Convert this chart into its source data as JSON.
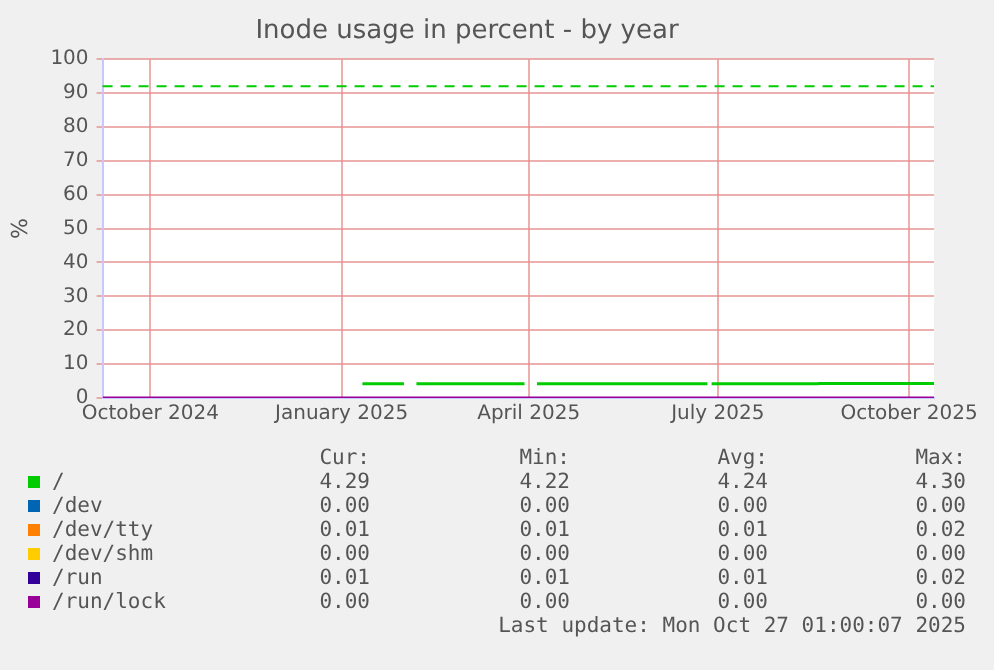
{
  "chart_data": {
    "type": "line",
    "title": "Inode usage in percent - by year",
    "ylabel": "%",
    "xlim": [
      "2024-09-22",
      "2025-10-27"
    ],
    "xticks": [
      {
        "value": "2024-10-15",
        "label": "October 2024"
      },
      {
        "value": "2025-01-15",
        "label": "January 2025"
      },
      {
        "value": "2025-04-15",
        "label": "April 2025"
      },
      {
        "value": "2025-07-15",
        "label": "July 2025"
      },
      {
        "value": "2025-10-15",
        "label": "October 2025"
      }
    ],
    "ylim": [
      0,
      100
    ],
    "yticks": [
      0,
      10,
      20,
      30,
      40,
      50,
      60,
      70,
      80,
      90,
      100
    ],
    "grid": true,
    "legend": "bottom",
    "ref_lines": [
      {
        "axis": "y",
        "value": 92,
        "color": "#00cc00",
        "line_style": "dashed"
      }
    ],
    "series": [
      {
        "name": "/",
        "color": "#00cc00",
        "x": [
          "2025-01-25",
          "2025-02-14",
          "2025-02-17",
          "2025-02-20",
          "2025-04-13",
          "2025-04-16",
          "2025-04-19",
          "2025-07-10",
          "2025-07-11",
          "2025-07-12",
          "2025-09-01",
          "2025-09-02",
          "2025-10-27"
        ],
        "values": [
          4.2,
          4.2,
          null,
          4.2,
          4.2,
          null,
          4.2,
          4.2,
          null,
          4.2,
          4.2,
          4.3,
          4.3
        ]
      },
      {
        "name": "/dev",
        "color": "#0066b3",
        "values": [
          null,
          null
        ]
      },
      {
        "name": "/dev/tty",
        "color": "#ff8000",
        "values": [
          null,
          null
        ]
      },
      {
        "name": "/dev/shm",
        "color": "#ffcc00",
        "values": [
          null,
          null
        ]
      },
      {
        "name": "/run",
        "color": "#330099",
        "values": [
          null,
          null
        ]
      },
      {
        "name": "/run/lock",
        "color": "#990099",
        "x": [
          "2024-09-22",
          "2025-10-27"
        ],
        "values": [
          0,
          0
        ]
      }
    ],
    "annotations": [
      "Cur:",
      "Min:",
      "Avg:",
      "Max:",
      "4.29",
      "4.22",
      "4.24",
      "4.30",
      "0.00",
      "0.00",
      "0.00",
      "0.00",
      "0.01",
      "0.01",
      "0.01",
      "0.02",
      "0.00",
      "0.00",
      "0.00",
      "0.00",
      "0.01",
      "0.01",
      "0.01",
      "0.02",
      "0.00",
      "0.00",
      "0.00",
      "0.00",
      "Last update: Mon Oct 27 01:00:07 2025"
    ]
  }
}
